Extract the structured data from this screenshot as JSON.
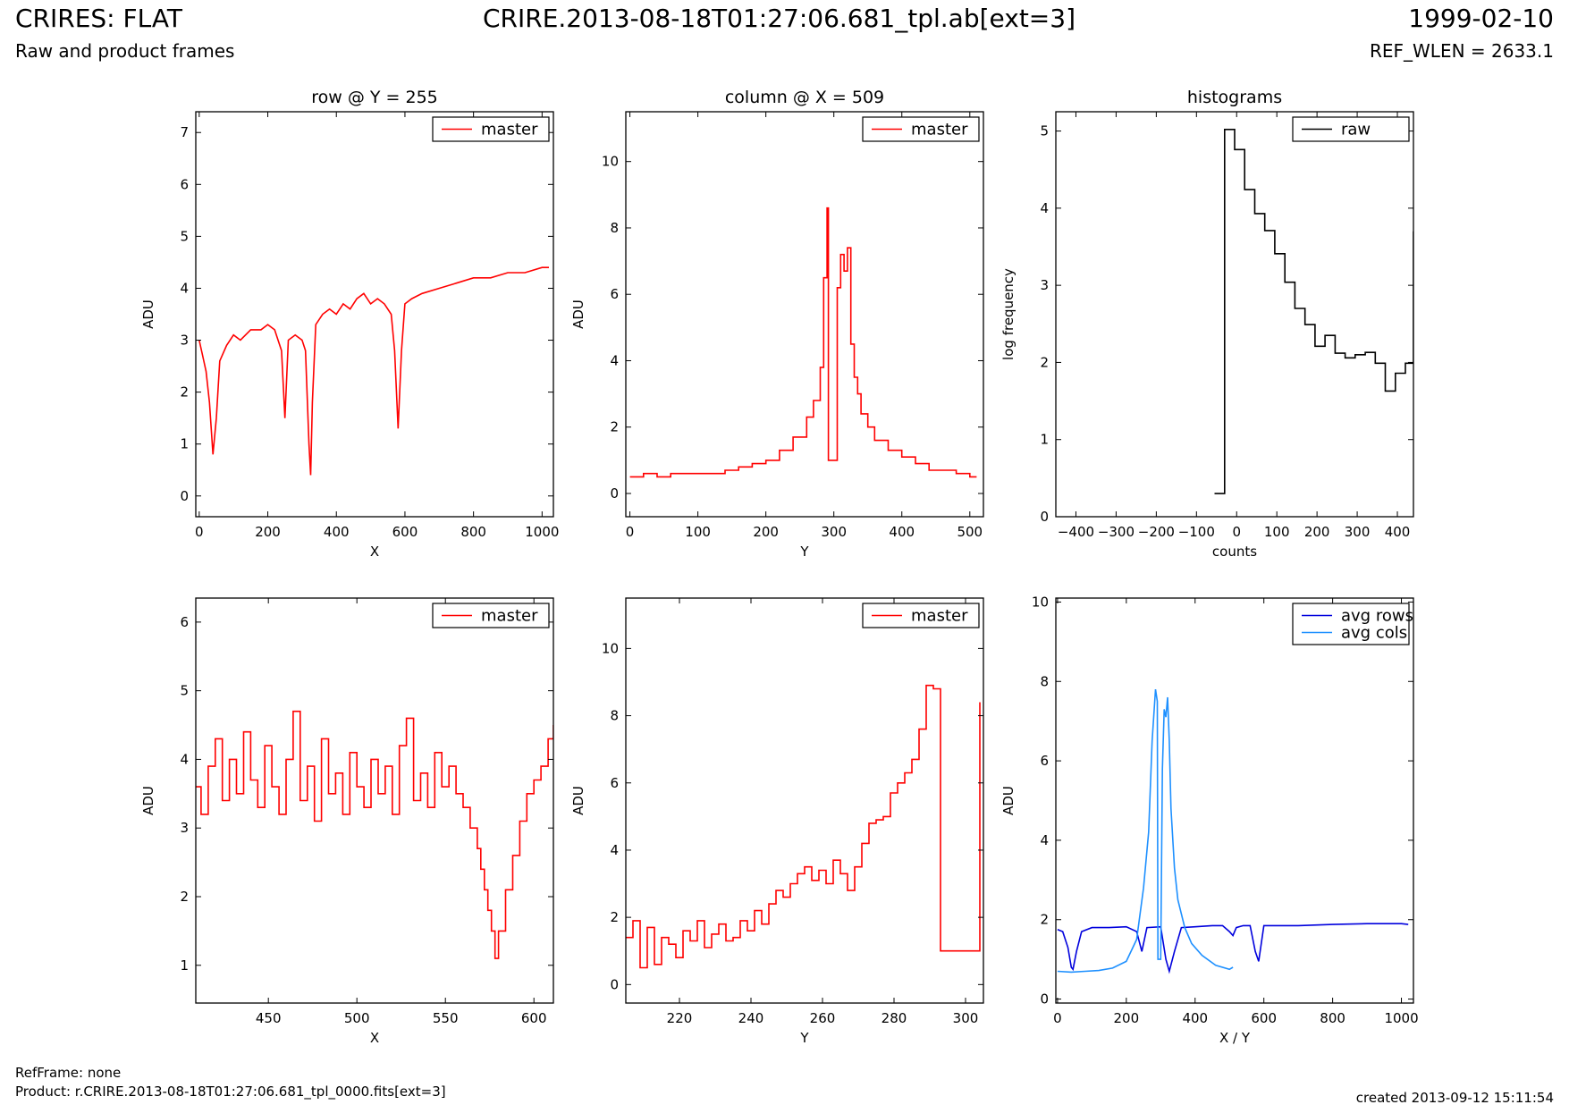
{
  "header": {
    "title": "CRIRES: FLAT",
    "subtitle": "Raw and product frames",
    "center_title": "CRIRE.2013-08-18T01:27:06.681_tpl.ab[ext=3]",
    "date": "1999-02-10",
    "ref_wlen": "REF_WLEN = 2633.1"
  },
  "footer": {
    "refframe": "RefFrame: none",
    "product": "Product: r.CRIRE.2013-08-18T01:27:06.681_tpl_0000.fits[ext=3]",
    "created": "created 2013-09-12 15:11:54"
  },
  "colors": {
    "master": "#ff0000",
    "raw": "#000000",
    "avg_rows": "#0000dd",
    "avg_cols": "#1e90ff"
  },
  "chart_data": [
    {
      "id": "row",
      "type": "line",
      "title": "row @ Y = 255",
      "xlabel": "X",
      "ylabel": "ADU",
      "xlim": [
        -10,
        1033
      ],
      "ylim": [
        -0.4,
        7.4
      ],
      "xticks": [
        "0",
        "200",
        "400",
        "600",
        "800",
        "1000"
      ],
      "yticks": [
        "0",
        "1",
        "2",
        "3",
        "4",
        "5",
        "6",
        "7"
      ],
      "legend": "top-right",
      "series": [
        {
          "name": "master",
          "color": "#ff0000",
          "step": false,
          "x": [
            0,
            10,
            20,
            30,
            40,
            50,
            60,
            80,
            100,
            120,
            150,
            180,
            200,
            220,
            240,
            250,
            260,
            280,
            300,
            310,
            320,
            325,
            330,
            340,
            360,
            380,
            400,
            420,
            440,
            460,
            480,
            500,
            520,
            540,
            560,
            570,
            580,
            590,
            600,
            620,
            650,
            700,
            750,
            800,
            850,
            900,
            950,
            1000,
            1020
          ],
          "y": [
            3.0,
            2.7,
            2.4,
            1.8,
            0.8,
            1.5,
            2.6,
            2.9,
            3.1,
            3.0,
            3.2,
            3.2,
            3.3,
            3.2,
            2.8,
            1.5,
            3.0,
            3.1,
            3.0,
            2.8,
            1.0,
            0.4,
            1.8,
            3.3,
            3.5,
            3.6,
            3.5,
            3.7,
            3.6,
            3.8,
            3.9,
            3.7,
            3.8,
            3.7,
            3.5,
            2.8,
            1.3,
            2.8,
            3.7,
            3.8,
            3.9,
            4.0,
            4.1,
            4.2,
            4.2,
            4.3,
            4.3,
            4.4,
            4.4
          ]
        }
      ]
    },
    {
      "id": "column",
      "type": "line",
      "title": "column @ X = 509",
      "xlabel": "Y",
      "ylabel": "ADU",
      "xlim": [
        -6,
        520
      ],
      "ylim": [
        -0.7,
        11.5
      ],
      "xticks": [
        "0",
        "100",
        "200",
        "300",
        "400",
        "500"
      ],
      "yticks": [
        "0",
        "2",
        "4",
        "6",
        "8",
        "10"
      ],
      "legend": "top-right",
      "series": [
        {
          "name": "master",
          "color": "#ff0000",
          "step": true,
          "x": [
            0,
            20,
            40,
            60,
            80,
            100,
            120,
            140,
            160,
            180,
            200,
            220,
            240,
            260,
            270,
            280,
            285,
            290,
            292,
            300,
            305,
            310,
            315,
            320,
            325,
            330,
            335,
            340,
            350,
            360,
            380,
            400,
            420,
            440,
            460,
            480,
            500,
            510
          ],
          "y": [
            0.5,
            0.6,
            0.5,
            0.6,
            0.6,
            0.6,
            0.6,
            0.7,
            0.8,
            0.9,
            1.0,
            1.3,
            1.7,
            2.3,
            2.8,
            3.8,
            6.5,
            8.6,
            1.0,
            1.0,
            6.2,
            7.2,
            6.7,
            7.4,
            4.5,
            3.5,
            3.0,
            2.4,
            2.0,
            1.6,
            1.3,
            1.1,
            0.9,
            0.7,
            0.7,
            0.6,
            0.5,
            0.5
          ]
        }
      ]
    },
    {
      "id": "histograms",
      "type": "line",
      "title": "histograms",
      "xlabel": "counts",
      "ylabel": "log frequency",
      "xlim": [
        -450,
        440
      ],
      "ylim": [
        0,
        5.25
      ],
      "xticks": [
        "−400",
        "−300",
        "−200",
        "−100",
        "0",
        "100",
        "200",
        "300",
        "400"
      ],
      "yticks": [
        "0",
        "1",
        "2",
        "3",
        "4",
        "5"
      ],
      "legend": "top-right",
      "series": [
        {
          "name": "raw",
          "color": "#000000",
          "step": true,
          "x": [
            -55,
            -30,
            -5,
            20,
            45,
            70,
            95,
            120,
            145,
            170,
            195,
            220,
            245,
            270,
            295,
            320,
            345,
            370,
            395,
            420,
            440
          ],
          "y": [
            0.3,
            5.02,
            4.76,
            4.24,
            3.93,
            3.71,
            3.41,
            3.04,
            2.7,
            2.49,
            2.21,
            2.35,
            2.12,
            2.06,
            2.1,
            2.13,
            1.99,
            1.63,
            1.86,
            1.99,
            3.7
          ]
        }
      ]
    },
    {
      "id": "row-zoom",
      "type": "line",
      "title": "",
      "xlabel": "X",
      "ylabel": "ADU",
      "xlim": [
        409,
        611
      ],
      "ylim": [
        0.45,
        6.35
      ],
      "xticks": [
        "450",
        "500",
        "550",
        "600"
      ],
      "yticks": [
        "1",
        "2",
        "3",
        "4",
        "5",
        "6"
      ],
      "legend": "top-right",
      "series": [
        {
          "name": "master",
          "color": "#ff0000",
          "step": true,
          "x": [
            409,
            412,
            416,
            420,
            424,
            428,
            432,
            436,
            440,
            444,
            448,
            452,
            456,
            460,
            464,
            468,
            472,
            476,
            480,
            484,
            488,
            492,
            496,
            500,
            504,
            508,
            512,
            516,
            520,
            524,
            528,
            532,
            536,
            540,
            544,
            548,
            552,
            556,
            560,
            564,
            568,
            570,
            572,
            574,
            576,
            578,
            580,
            584,
            588,
            592,
            596,
            600,
            604,
            608,
            611
          ],
          "y": [
            3.6,
            3.2,
            3.9,
            4.3,
            3.4,
            4.0,
            3.5,
            4.4,
            3.7,
            3.3,
            4.2,
            3.6,
            3.2,
            4.0,
            4.7,
            3.4,
            3.9,
            3.1,
            4.3,
            3.5,
            3.8,
            3.2,
            4.1,
            3.6,
            3.3,
            4.0,
            3.5,
            3.9,
            3.2,
            4.2,
            4.6,
            3.4,
            3.8,
            3.3,
            4.1,
            3.6,
            3.9,
            3.5,
            3.3,
            3.0,
            2.7,
            2.4,
            2.1,
            1.8,
            1.5,
            1.1,
            1.5,
            2.1,
            2.6,
            3.1,
            3.5,
            3.7,
            3.9,
            4.3,
            4.5
          ]
        }
      ]
    },
    {
      "id": "column-zoom",
      "type": "line",
      "title": "",
      "xlabel": "Y",
      "ylabel": "ADU",
      "xlim": [
        205,
        305
      ],
      "ylim": [
        -0.55,
        11.5
      ],
      "xticks": [
        "220",
        "240",
        "260",
        "280",
        "300"
      ],
      "yticks": [
        "0",
        "2",
        "4",
        "6",
        "8",
        "10"
      ],
      "legend": "top-right",
      "series": [
        {
          "name": "master",
          "color": "#ff0000",
          "step": true,
          "x": [
            205,
            207,
            209,
            211,
            213,
            215,
            217,
            219,
            221,
            223,
            225,
            227,
            229,
            231,
            233,
            235,
            237,
            239,
            241,
            243,
            245,
            247,
            249,
            251,
            253,
            255,
            257,
            259,
            261,
            263,
            265,
            267,
            269,
            271,
            273,
            275,
            277,
            279,
            281,
            283,
            285,
            287,
            289,
            291,
            293,
            295,
            297,
            299,
            301,
            303,
            304
          ],
          "y": [
            1.4,
            1.9,
            0.5,
            1.7,
            0.6,
            1.4,
            1.2,
            0.8,
            1.6,
            1.3,
            1.9,
            1.1,
            1.5,
            1.8,
            1.3,
            1.4,
            1.9,
            1.6,
            2.2,
            1.8,
            2.4,
            2.8,
            2.6,
            3.0,
            3.3,
            3.5,
            3.1,
            3.4,
            3.0,
            3.7,
            3.3,
            2.8,
            3.5,
            4.2,
            4.8,
            4.9,
            5.0,
            5.7,
            6.0,
            6.3,
            6.7,
            7.6,
            8.9,
            8.8,
            1.0,
            1.0,
            1.0,
            1.0,
            1.0,
            1.0,
            8.4
          ]
        }
      ]
    },
    {
      "id": "averages",
      "type": "line",
      "title": "",
      "xlabel": "X / Y",
      "ylabel": "ADU",
      "xlim": [
        -5,
        1035
      ],
      "ylim": [
        -0.1,
        10.1
      ],
      "xticks": [
        "0",
        "200",
        "400",
        "600",
        "800",
        "1000"
      ],
      "yticks": [
        "0",
        "2",
        "4",
        "6",
        "8",
        "10"
      ],
      "legend": "top-right",
      "series": [
        {
          "name": "avg rows",
          "color": "#0000dd",
          "step": false,
          "x": [
            0,
            15,
            30,
            40,
            45,
            55,
            70,
            100,
            150,
            200,
            230,
            245,
            260,
            300,
            315,
            325,
            340,
            360,
            400,
            450,
            480,
            500,
            510,
            520,
            540,
            560,
            575,
            585,
            600,
            650,
            700,
            800,
            900,
            1000,
            1020
          ],
          "y": [
            1.75,
            1.7,
            1.3,
            0.8,
            0.75,
            1.2,
            1.7,
            1.8,
            1.8,
            1.82,
            1.7,
            1.2,
            1.8,
            1.82,
            1.0,
            0.7,
            1.2,
            1.8,
            1.82,
            1.85,
            1.85,
            1.7,
            1.6,
            1.8,
            1.85,
            1.85,
            1.2,
            0.95,
            1.85,
            1.85,
            1.85,
            1.88,
            1.9,
            1.9,
            1.88
          ]
        },
        {
          "name": "avg cols",
          "color": "#1e90ff",
          "step": false,
          "x": [
            0,
            40,
            80,
            120,
            160,
            200,
            230,
            250,
            265,
            275,
            285,
            290,
            292,
            300,
            305,
            310,
            315,
            320,
            325,
            330,
            340,
            350,
            370,
            390,
            420,
            460,
            500,
            510
          ],
          "y": [
            0.7,
            0.68,
            0.7,
            0.72,
            0.78,
            0.95,
            1.5,
            2.8,
            4.2,
            6.5,
            7.8,
            7.5,
            1.0,
            1.0,
            5.8,
            7.3,
            7.1,
            7.6,
            6.5,
            4.8,
            3.3,
            2.5,
            1.8,
            1.4,
            1.1,
            0.85,
            0.75,
            0.8
          ]
        }
      ]
    }
  ]
}
